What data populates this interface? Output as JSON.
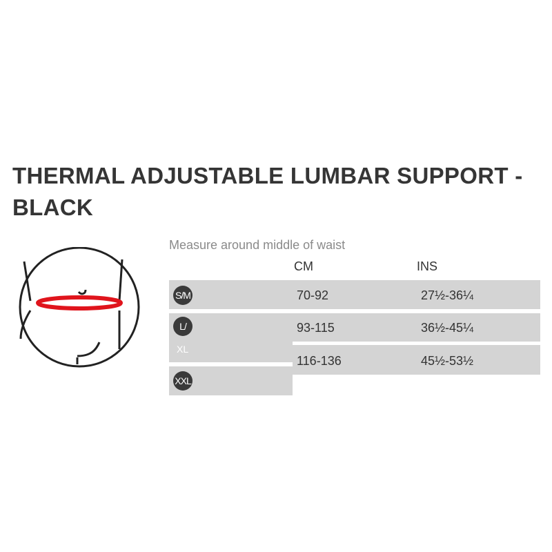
{
  "title": "THERMAL ADJUSTABLE LUMBAR SUPPORT - BLACK",
  "instruction": "Measure around middle of waist",
  "headers": {
    "cm": "CM",
    "ins": "INS"
  },
  "sizes": [
    {
      "badge": "S/M",
      "extra": ""
    },
    {
      "badge": "L/",
      "extra": "XL"
    },
    {
      "badge": "XXL",
      "extra": ""
    }
  ],
  "rows": [
    {
      "cm": "70-92",
      "ins": "27½-36¼"
    },
    {
      "cm": "93-115",
      "ins": "36½-45¼"
    },
    {
      "cm": "116-136",
      "ins": "45½-53½"
    }
  ],
  "colors": {
    "waist_band": "#e0141c",
    "cell": "#d4d4d4",
    "badge": "#3a3a3a"
  },
  "icon": "waist-measurement-icon"
}
